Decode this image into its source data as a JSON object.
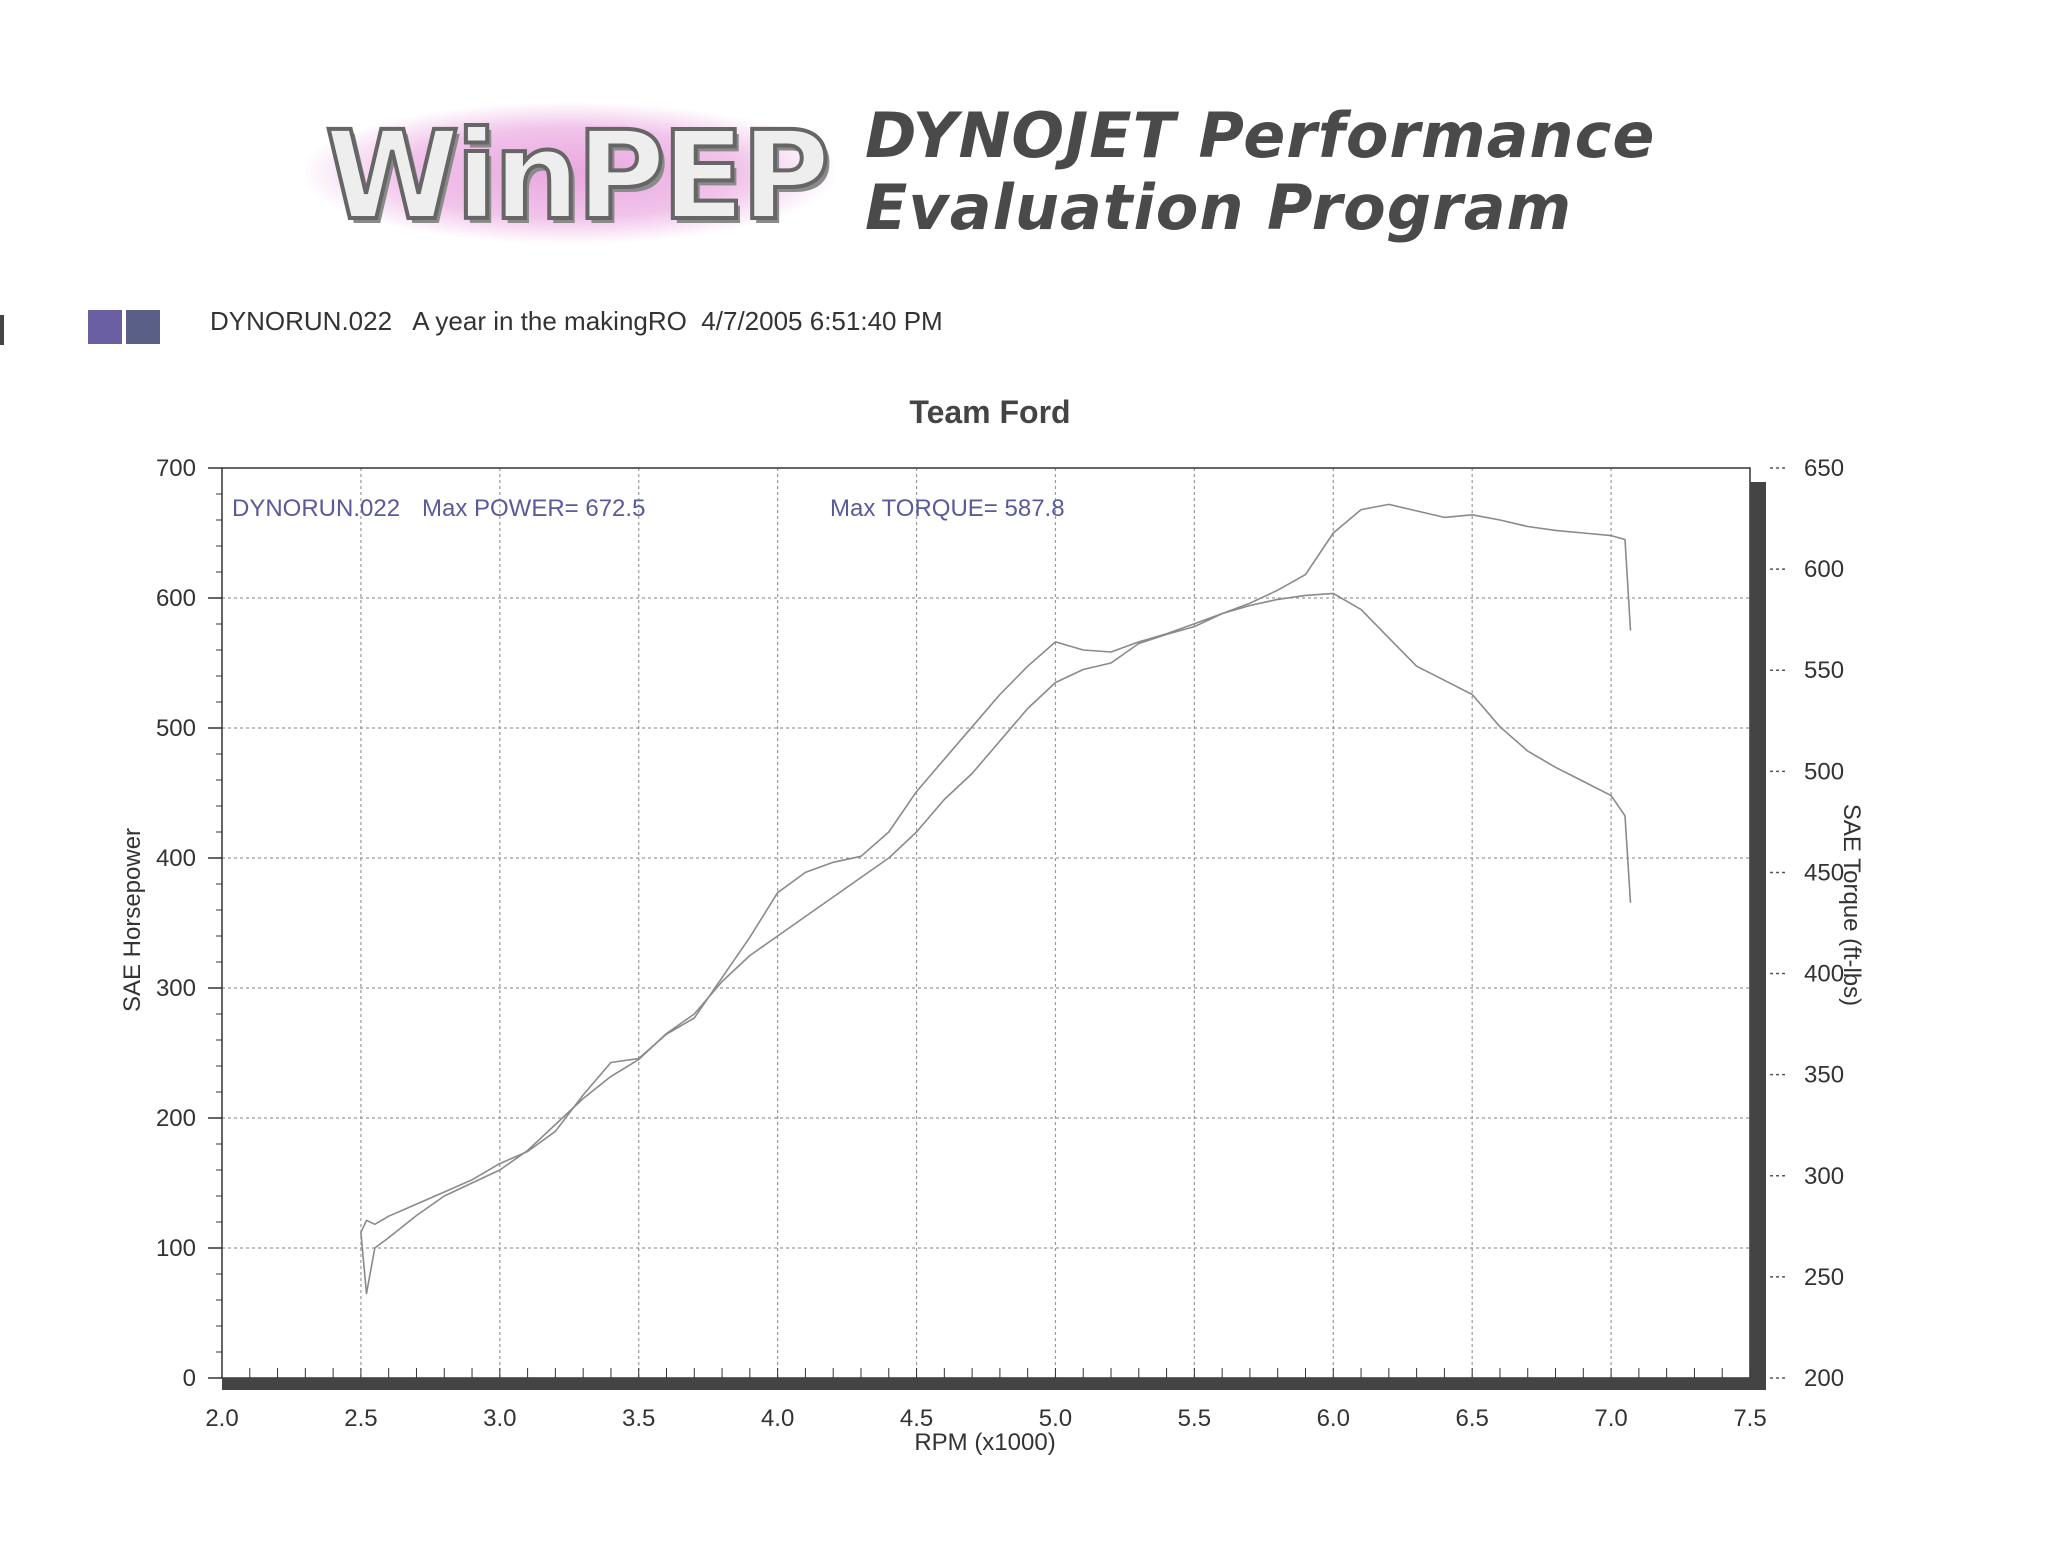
{
  "header": {
    "logo_text": "WinPEP",
    "program_line1": "DYNOJET Performance",
    "program_line2": "Evaluation Program"
  },
  "run_info": {
    "text": "DYNORUN.022   A year in the makingRO  4/7/2005 6:51:40 PM"
  },
  "colors": {
    "run_icon_1": "#6b5fa3",
    "run_icon_2": "#5a5f88",
    "annotation": "#5a5a9a",
    "curve": "#8a8a8a",
    "frame": "#333333"
  },
  "chart_data": {
    "type": "line",
    "title": "Team Ford",
    "xlabel": "RPM (x1000)",
    "ylabel": "SAE Horsepower",
    "y2label": "SAE Torque (ft-lbs)",
    "xlim": [
      2.0,
      7.5
    ],
    "ylim": [
      0,
      700
    ],
    "y2lim": [
      200,
      650
    ],
    "x_ticks": [
      "2.0",
      "2.5",
      "3.0",
      "3.5",
      "4.0",
      "4.5",
      "5.0",
      "5.5",
      "6.0",
      "6.5",
      "7.0",
      "7.5"
    ],
    "y_ticks": [
      "0",
      "100",
      "200",
      "300",
      "400",
      "500",
      "600",
      "700"
    ],
    "y2_ticks": [
      "200",
      "250",
      "300",
      "350",
      "400",
      "450",
      "500",
      "550",
      "600",
      "650"
    ],
    "grid": true,
    "annotations": {
      "run": "DYNORUN.022",
      "max_power": "Max POWER= 672.5",
      "max_torque": "Max TORQUE= 587.8"
    },
    "series": [
      {
        "axis": "left",
        "x": [
          2.5,
          2.52,
          2.55,
          2.6,
          2.7,
          2.8,
          2.9,
          3.0,
          3.1,
          3.2,
          3.3,
          3.4,
          3.5,
          3.6,
          3.7,
          3.8,
          3.9,
          4.0,
          4.1,
          4.2,
          4.3,
          4.4,
          4.5,
          4.6,
          4.7,
          4.8,
          4.9,
          5.0,
          5.1,
          5.2,
          5.3,
          5.4,
          5.5,
          5.6,
          5.7,
          5.8,
          5.9,
          6.0,
          6.1,
          6.2,
          6.3,
          6.4,
          6.5,
          6.6,
          6.7,
          6.8,
          6.9,
          7.0,
          7.05,
          7.07
        ],
        "values": [
          112,
          65,
          100,
          108,
          125,
          140,
          150,
          160,
          175,
          195,
          215,
          232,
          245,
          265,
          280,
          305,
          325,
          340,
          355,
          370,
          385,
          400,
          420,
          445,
          465,
          490,
          515,
          535,
          545,
          550,
          565,
          572,
          578,
          588,
          596,
          606,
          618,
          650,
          668,
          672,
          667,
          662,
          664,
          660,
          655,
          652,
          650,
          648,
          645,
          575
        ]
      },
      {
        "axis": "right",
        "x": [
          2.5,
          2.52,
          2.55,
          2.6,
          2.7,
          2.8,
          2.9,
          3.0,
          3.1,
          3.2,
          3.3,
          3.4,
          3.5,
          3.6,
          3.7,
          3.8,
          3.9,
          4.0,
          4.1,
          4.2,
          4.3,
          4.4,
          4.5,
          4.6,
          4.7,
          4.8,
          4.9,
          5.0,
          5.1,
          5.2,
          5.3,
          5.4,
          5.5,
          5.6,
          5.7,
          5.8,
          5.9,
          6.0,
          6.1,
          6.2,
          6.3,
          6.4,
          6.5,
          6.6,
          6.7,
          6.8,
          6.9,
          7.0,
          7.05,
          7.07
        ],
        "values": [
          272,
          278,
          276,
          280,
          286,
          292,
          298,
          306,
          312,
          322,
          340,
          356,
          358,
          370,
          378,
          398,
          418,
          440,
          450,
          455,
          458,
          470,
          490,
          506,
          522,
          538,
          552,
          564,
          560,
          559,
          564,
          568,
          573,
          578,
          582,
          585,
          587,
          588,
          580,
          566,
          552,
          545,
          538,
          522,
          510,
          502,
          495,
          488,
          478,
          435
        ]
      }
    ]
  }
}
